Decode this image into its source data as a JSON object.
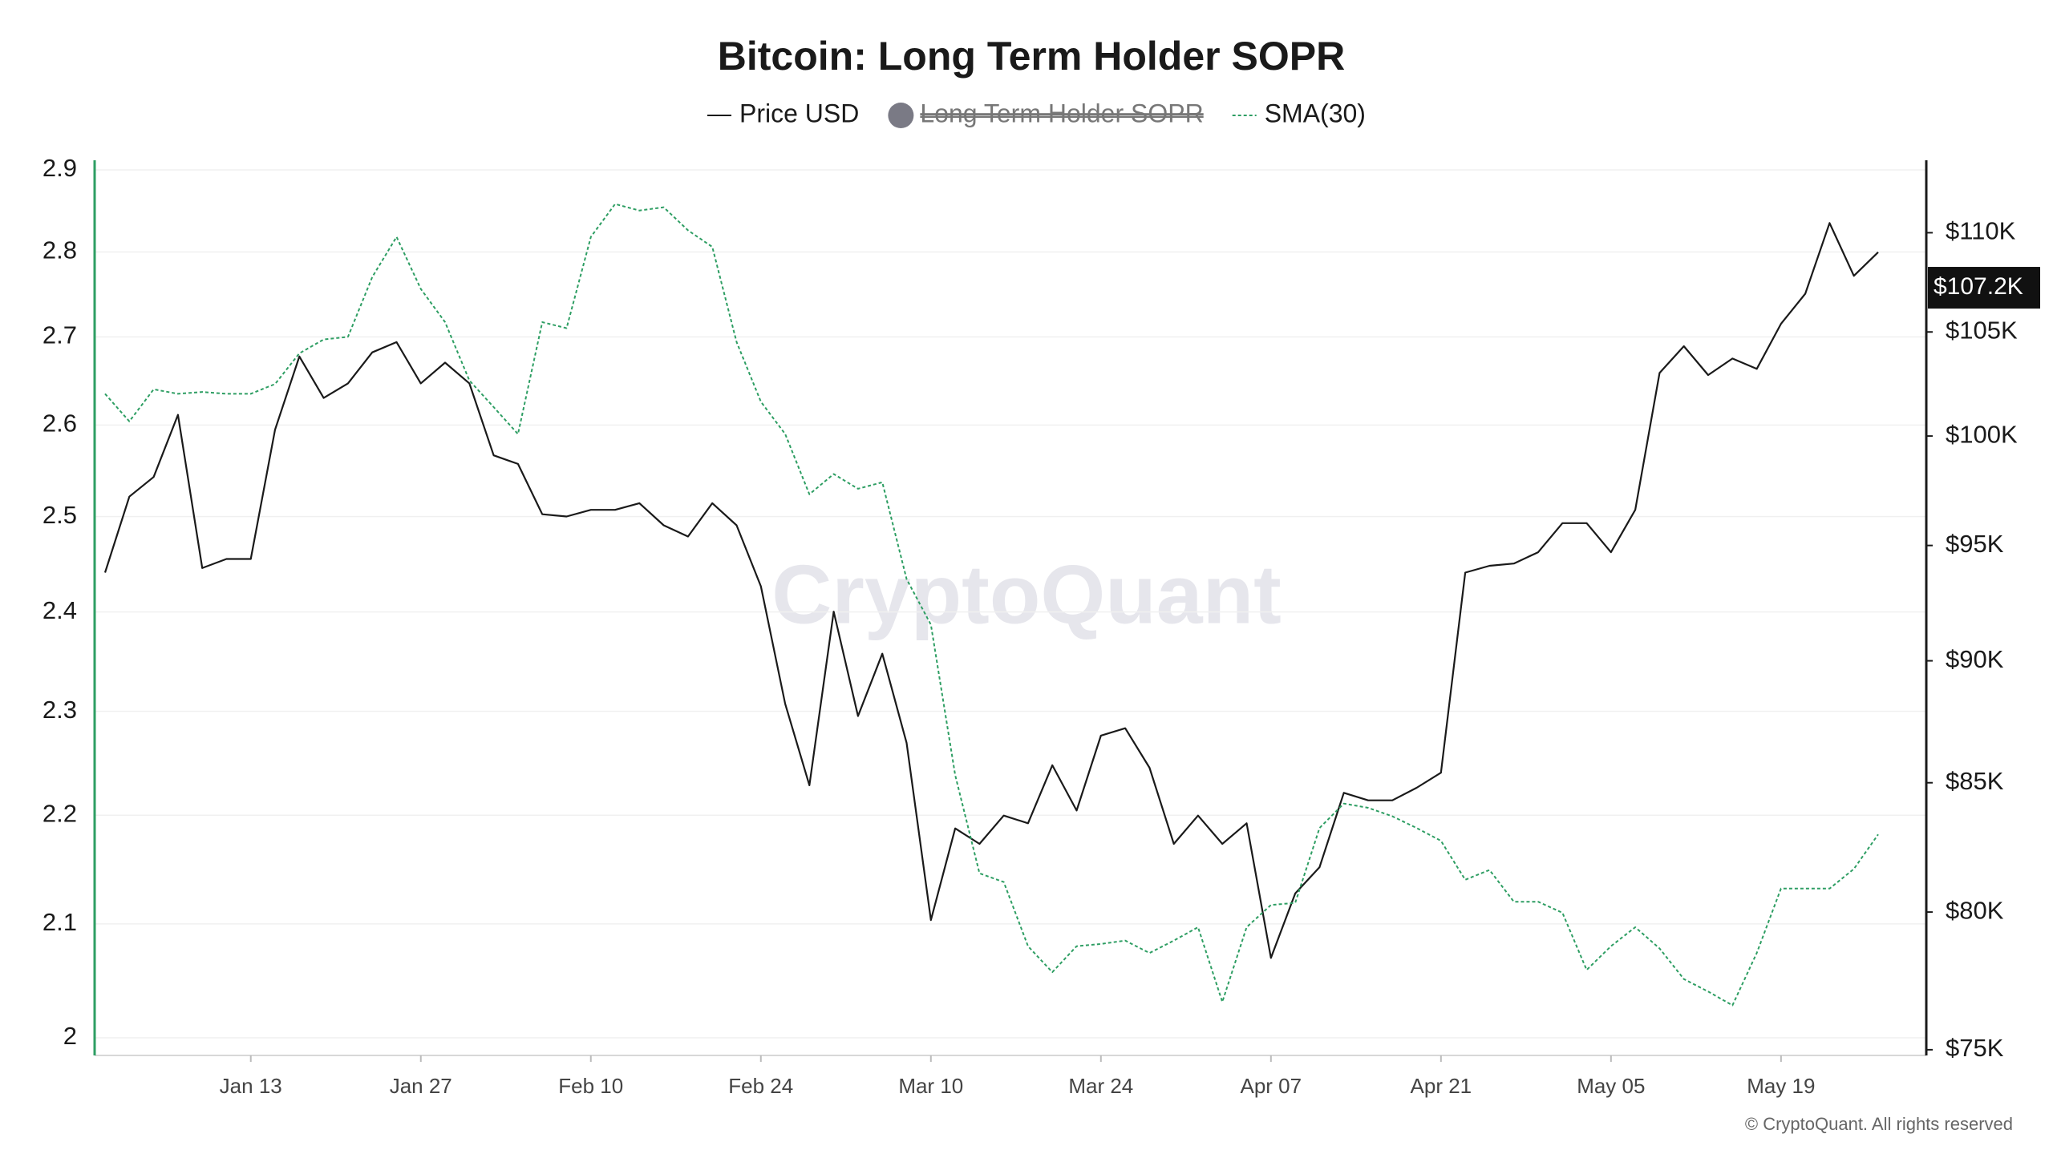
{
  "chart_data": {
    "type": "line",
    "title": "Bitcoin: Long Term Holder SOPR",
    "watermark": "CryptoQuant",
    "footer": "© CryptoQuant. All rights reserved",
    "x": [
      "Jan 01",
      "Jan 03",
      "Jan 05",
      "Jan 07",
      "Jan 09",
      "Jan 11",
      "Jan 13",
      "Jan 15",
      "Jan 17",
      "Jan 19",
      "Jan 21",
      "Jan 23",
      "Jan 25",
      "Jan 27",
      "Jan 29",
      "Jan 31",
      "Feb 02",
      "Feb 04",
      "Feb 06",
      "Feb 08",
      "Feb 10",
      "Feb 12",
      "Feb 14",
      "Feb 16",
      "Feb 18",
      "Feb 20",
      "Feb 22",
      "Feb 24",
      "Feb 26",
      "Feb 28",
      "Mar 02",
      "Mar 04",
      "Mar 06",
      "Mar 08",
      "Mar 10",
      "Mar 12",
      "Mar 14",
      "Mar 16",
      "Mar 18",
      "Mar 20",
      "Mar 22",
      "Mar 24",
      "Mar 26",
      "Mar 28",
      "Mar 30",
      "Apr 01",
      "Apr 03",
      "Apr 05",
      "Apr 07",
      "Apr 09",
      "Apr 11",
      "Apr 13",
      "Apr 15",
      "Apr 17",
      "Apr 19",
      "Apr 21",
      "Apr 23",
      "Apr 25",
      "Apr 27",
      "Apr 29",
      "May 01",
      "May 03",
      "May 05",
      "May 07",
      "May 09",
      "May 11",
      "May 13",
      "May 15",
      "May 17",
      "May 19",
      "May 21",
      "May 23",
      "May 25",
      "May 27"
    ],
    "xticks": [
      "Jan 13",
      "Jan 27",
      "Feb 10",
      "Feb 24",
      "Mar 10",
      "Mar 24",
      "Apr 07",
      "Apr 21",
      "May 05",
      "May 19"
    ],
    "series": [
      {
        "name": "Price USD",
        "color": "#1a1a1a",
        "axis": "y2",
        "dash": false,
        "values": [
          93800,
          97200,
          98100,
          101000,
          94000,
          94400,
          94400,
          100300,
          103800,
          101800,
          102500,
          104000,
          104500,
          102500,
          103500,
          102500,
          99100,
          98700,
          96400,
          96300,
          96600,
          96600,
          96900,
          95900,
          95400,
          96900,
          95900,
          93200,
          88200,
          84900,
          92100,
          87700,
          90300,
          86600,
          79700,
          83200,
          82600,
          83700,
          83400,
          85700,
          83900,
          86900,
          87200,
          85600,
          82600,
          83700,
          82600,
          83400,
          78300,
          80700,
          81700,
          84600,
          84300,
          84300,
          84800,
          85400,
          93800,
          94100,
          94200,
          94700,
          96000,
          96000,
          94700,
          96600,
          103000,
          104300,
          102900,
          103700,
          103200,
          105400,
          106900,
          110500,
          107800,
          109000
        ]
      },
      {
        "name": "SMA(30)",
        "color": "#2e9e63",
        "axis": "y",
        "dash": true,
        "values": [
          2.635,
          2.604,
          2.64,
          2.635,
          2.637,
          2.635,
          2.635,
          2.646,
          2.681,
          2.697,
          2.7,
          2.77,
          2.818,
          2.756,
          2.717,
          2.65,
          2.62,
          2.59,
          2.717,
          2.71,
          2.818,
          2.858,
          2.85,
          2.854,
          2.826,
          2.806,
          2.694,
          2.626,
          2.59,
          2.524,
          2.546,
          2.53,
          2.537,
          2.434,
          2.387,
          2.238,
          2.146,
          2.138,
          2.08,
          2.057,
          2.08,
          2.082,
          2.085,
          2.074,
          2.085,
          2.097,
          2.031,
          2.097,
          2.117,
          2.119,
          2.188,
          2.211,
          2.207,
          2.199,
          2.188,
          2.176,
          2.14,
          2.149,
          2.12,
          2.12,
          2.11,
          2.059,
          2.08,
          2.097,
          2.078,
          2.051,
          2.04,
          2.028,
          2.074,
          2.132,
          2.132,
          2.132,
          2.15,
          2.182
        ]
      }
    ],
    "hidden_series": {
      "name": "Long Term Holder SOPR",
      "color": "#7a7a85"
    },
    "ylim": [
      1.985,
      2.912
    ],
    "ylog": true,
    "yticks": [
      2,
      2.1,
      2.2,
      2.3,
      2.4,
      2.5,
      2.6,
      2.7,
      2.8,
      2.9
    ],
    "y2lim": [
      74800,
      113800
    ],
    "y2log": true,
    "y2ticks": [
      {
        "value": 75000,
        "label": "$75K"
      },
      {
        "value": 80000,
        "label": "$80K"
      },
      {
        "value": 85000,
        "label": "$85K"
      },
      {
        "value": 90000,
        "label": "$90K"
      },
      {
        "value": 95000,
        "label": "$95K"
      },
      {
        "value": 100000,
        "label": "$100K"
      },
      {
        "value": 105000,
        "label": "$105K"
      },
      {
        "value": 110000,
        "label": "$110K"
      }
    ],
    "current_price": {
      "value": 107200,
      "label": "$107.2K"
    },
    "grid": true
  }
}
